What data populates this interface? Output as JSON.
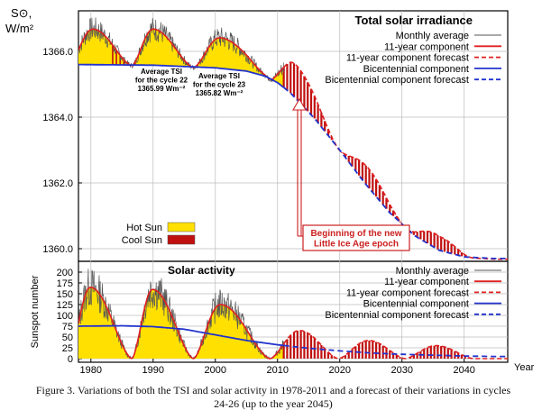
{
  "caption": "Figure 3. Variations of both the TSI and solar activity in 1978-2011 and a forecast of their variations in cycles 24-26 (up to the year 2045)",
  "colors": {
    "hot_sun": "#ffe000",
    "cool_sun": "#c01010",
    "monthly": "#555555",
    "component11": "#e02020",
    "bicentennial": "#2233cc",
    "annotation": "#cc2020"
  },
  "chart_data": [
    {
      "type": "line",
      "title": "Total solar irradiance",
      "ylabel": "S⊙, W/m²",
      "xlim": [
        1978,
        2047
      ],
      "ylim": [
        1359.6,
        1366.7
      ],
      "yticks": [
        1360.0,
        1362.0,
        1364.0,
        1366.0
      ],
      "ytick_labels": [
        "1360.0",
        "1362.0",
        "1364.0",
        "1366.0"
      ],
      "legend": [
        "Monthly average",
        "11-year component",
        "11-year component forecast",
        "Bicentennial component",
        "Bicentennial component forecast"
      ],
      "legend_position": "top-right",
      "fill_legend": [
        "Hot Sun",
        "Cool Sun"
      ],
      "fill_legend_position": "lower-left",
      "annotations": [
        {
          "lines": [
            "Average TSI",
            "for the cycle 22",
            "1365.99 Wm⁻²"
          ]
        },
        {
          "lines": [
            "Average TSI",
            "for the cycle 23",
            "1365.82 Wm⁻²"
          ]
        },
        {
          "lines": [
            "Beginning of the new",
            "Little Ice Age epoch"
          ]
        }
      ],
      "bicentennial": {
        "x": [
          1978,
          1990,
          2000,
          2005,
          2008,
          2010,
          2012,
          2014,
          2016,
          2020,
          2024,
          2028,
          2032,
          2036,
          2040,
          2045
        ],
        "y": [
          1365.6,
          1365.58,
          1365.5,
          1365.4,
          1365.25,
          1365.05,
          1364.75,
          1364.35,
          1363.95,
          1363.0,
          1362.0,
          1361.1,
          1360.4,
          1359.95,
          1359.75,
          1359.7
        ]
      },
      "cycles": [
        {
          "start": 1976.5,
          "peak": 1980.3,
          "end": 1986.6,
          "amp": 1.1
        },
        {
          "start": 1986.6,
          "peak": 1990.0,
          "end": 1996.5,
          "amp": 1.12
        },
        {
          "start": 1996.5,
          "peak": 2000.8,
          "end": 2008.8,
          "amp": 0.95
        },
        {
          "start": 2008.8,
          "peak": 2013.0,
          "end": 2019.8,
          "amp": 1.05
        },
        {
          "start": 2019.8,
          "peak": 2024.6,
          "end": 2030.5,
          "amp": 0.6
        },
        {
          "start": 2030.5,
          "peak": 2035.5,
          "end": 2041.5,
          "amp": 0.45
        }
      ],
      "forecast_start": 2011
    },
    {
      "type": "line",
      "title": "Solar activity",
      "ylabel": "Sunspot number",
      "xlim": [
        1978,
        2047
      ],
      "ylim": [
        0,
        210
      ],
      "yticks": [
        0,
        25,
        50,
        75,
        100,
        125,
        150,
        175,
        200
      ],
      "ytick_labels": [
        "0",
        "25",
        "50",
        "75",
        "100",
        "125",
        "150",
        "175",
        "200"
      ],
      "xticks": [
        1980,
        1990,
        2000,
        2010,
        2020,
        2030,
        2040
      ],
      "xtick_labels": [
        "1980",
        "1990",
        "2000",
        "2010",
        "2020",
        "2030",
        "2040"
      ],
      "xlabel": "Year",
      "legend": [
        "Monthly average",
        "11-year component",
        "11-year component forecast",
        "Bicentennial component",
        "Bicentennial component forecast"
      ],
      "legend_position": "top-right",
      "bicentennial": {
        "x": [
          1978,
          1985,
          1990,
          1995,
          2000,
          2005,
          2010,
          2015,
          2020,
          2025,
          2030,
          2035,
          2040,
          2045
        ],
        "y": [
          75,
          76,
          74,
          68,
          55,
          42,
          32,
          24,
          18,
          13,
          10,
          8,
          6,
          5
        ]
      },
      "cycles": [
        {
          "start": 1976.5,
          "peak": 1979.9,
          "end": 1986.6,
          "amp": 165
        },
        {
          "start": 1986.6,
          "peak": 1989.9,
          "end": 1996.5,
          "amp": 160
        },
        {
          "start": 1996.5,
          "peak": 2000.8,
          "end": 2008.8,
          "amp": 125
        },
        {
          "start": 2008.8,
          "peak": 2013.5,
          "end": 2019.8,
          "amp": 65
        },
        {
          "start": 2019.8,
          "peak": 2024.6,
          "end": 2030.5,
          "amp": 42
        },
        {
          "start": 2030.5,
          "peak": 2035.5,
          "end": 2041.5,
          "amp": 30
        }
      ],
      "forecast_start": 2011
    }
  ]
}
